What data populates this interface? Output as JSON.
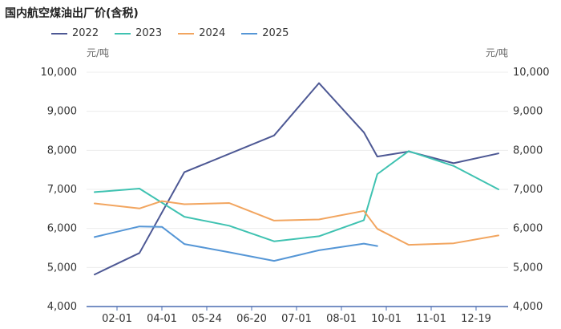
{
  "title": "国内航空煤油出厂价(含税)",
  "unit_left": "元/吨",
  "unit_right": "元/吨",
  "colors": {
    "2022": "#4d5894",
    "2023": "#3fc2b1",
    "2024": "#f2a55f",
    "2025": "#5596d6",
    "axis": "#4a6bb0",
    "grid": "#ececec"
  },
  "chart_data": {
    "type": "line",
    "title": "国内航空煤油出厂价(含税)",
    "ylabel": "元/吨",
    "ylim": [
      4000,
      10000
    ],
    "yticks": [
      "4,000",
      "5,000",
      "6,000",
      "7,000",
      "8,000",
      "9,000",
      "10,000"
    ],
    "x_tick_labels": [
      "02-01",
      "04-01",
      "05-24",
      "06-20",
      "07-01",
      "08-01",
      "10-01",
      "11-01",
      "12-19"
    ],
    "legend_position": "top-left",
    "grid": true,
    "series": [
      {
        "name": "2022",
        "points": [
          [
            1,
            4820
          ],
          [
            2,
            5370
          ],
          [
            3,
            7440
          ],
          [
            5,
            8380
          ],
          [
            6,
            9720
          ],
          [
            7,
            8460
          ],
          [
            7.3,
            7840
          ],
          [
            8,
            7970
          ],
          [
            9,
            7670
          ],
          [
            10,
            7920
          ]
        ]
      },
      {
        "name": "2023",
        "points": [
          [
            1,
            6930
          ],
          [
            2,
            7020
          ],
          [
            3,
            6300
          ],
          [
            4,
            6070
          ],
          [
            5,
            5670
          ],
          [
            6,
            5800
          ],
          [
            7,
            6210
          ],
          [
            7.3,
            7390
          ],
          [
            8,
            7980
          ],
          [
            9,
            7600
          ],
          [
            10,
            7000
          ]
        ]
      },
      {
        "name": "2024",
        "points": [
          [
            1,
            6640
          ],
          [
            2,
            6510
          ],
          [
            2.5,
            6700
          ],
          [
            3,
            6620
          ],
          [
            4,
            6650
          ],
          [
            5,
            6200
          ],
          [
            6,
            6230
          ],
          [
            7,
            6450
          ],
          [
            7.3,
            5990
          ],
          [
            8,
            5580
          ],
          [
            9,
            5620
          ],
          [
            10,
            5820
          ]
        ]
      },
      {
        "name": "2025",
        "points": [
          [
            1,
            5780
          ],
          [
            2,
            6050
          ],
          [
            2.5,
            6040
          ],
          [
            3,
            5600
          ],
          [
            4,
            5390
          ],
          [
            5,
            5170
          ],
          [
            6,
            5440
          ],
          [
            7,
            5610
          ],
          [
            7.3,
            5550
          ]
        ]
      }
    ]
  }
}
